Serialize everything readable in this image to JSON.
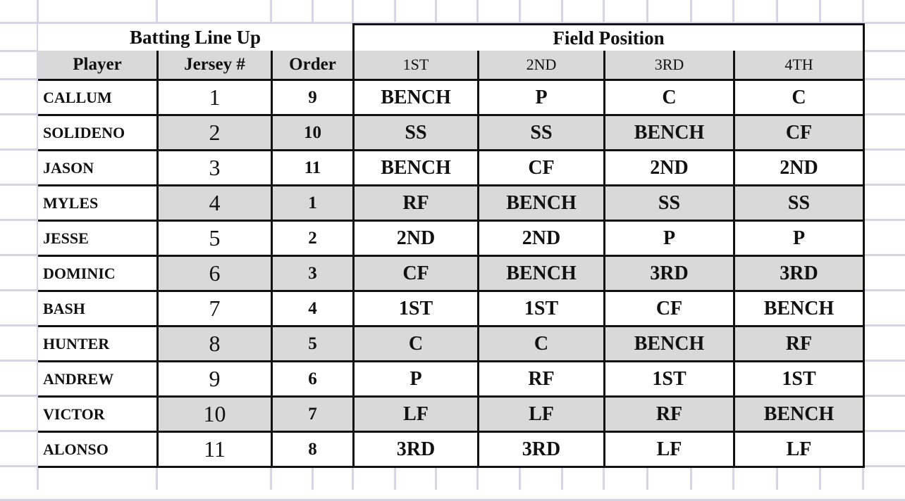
{
  "batting_title": "Batting Line Up",
  "field_title": "Field Position",
  "columns": [
    "Player",
    "Jersey #",
    "Order",
    "1ST",
    "2ND",
    "3RD",
    "4TH"
  ],
  "rows": [
    {
      "player": "CALLUM",
      "jersey": "1",
      "order": "9",
      "positions": [
        "BENCH",
        "P",
        "C",
        "C"
      ]
    },
    {
      "player": "SOLIDENO",
      "jersey": "2",
      "order": "10",
      "positions": [
        "SS",
        "SS",
        "BENCH",
        "CF"
      ]
    },
    {
      "player": "JASON",
      "jersey": "3",
      "order": "11",
      "positions": [
        "BENCH",
        "CF",
        "2ND",
        "2ND"
      ]
    },
    {
      "player": "MYLES",
      "jersey": "4",
      "order": "1",
      "positions": [
        "RF",
        "BENCH",
        "SS",
        "SS"
      ]
    },
    {
      "player": "JESSE",
      "jersey": "5",
      "order": "2",
      "positions": [
        "2ND",
        "2ND",
        "P",
        "P"
      ]
    },
    {
      "player": "DOMINIC",
      "jersey": "6",
      "order": "3",
      "positions": [
        "CF",
        "BENCH",
        "3RD",
        "3RD"
      ]
    },
    {
      "player": "BASH",
      "jersey": "7",
      "order": "4",
      "positions": [
        "1ST",
        "1ST",
        "CF",
        "BENCH"
      ]
    },
    {
      "player": "HUNTER",
      "jersey": "8",
      "order": "5",
      "positions": [
        "C",
        "C",
        "BENCH",
        "RF"
      ]
    },
    {
      "player": "ANDREW",
      "jersey": "9",
      "order": "6",
      "positions": [
        "P",
        "RF",
        "1ST",
        "1ST"
      ]
    },
    {
      "player": "VICTOR",
      "jersey": "10",
      "order": "7",
      "positions": [
        "LF",
        "LF",
        "RF",
        "BENCH"
      ]
    },
    {
      "player": "ALONSO",
      "jersey": "11",
      "order": "8",
      "positions": [
        "3RD",
        "3RD",
        "LF",
        "LF"
      ]
    }
  ],
  "colors": {
    "shade": "#d9d9d9",
    "grid": "#d6d4e8",
    "border": "#111111"
  }
}
